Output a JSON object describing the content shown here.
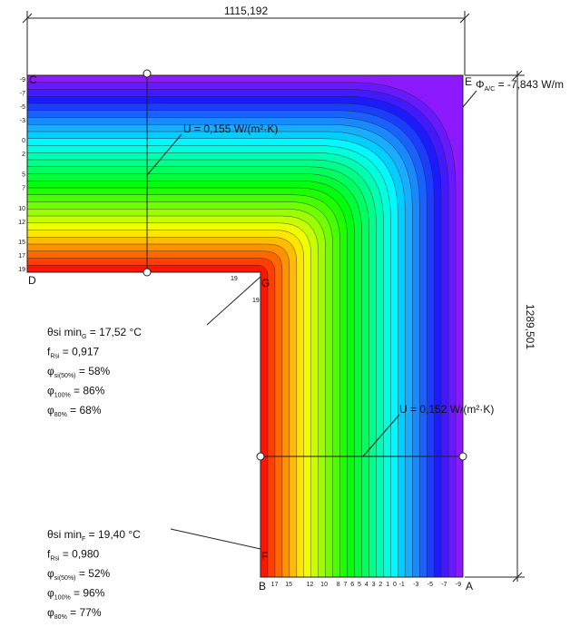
{
  "dimensions": {
    "width": "1115,192",
    "height": "1289,501"
  },
  "points": [
    "C",
    "E",
    "D",
    "G",
    "B",
    "A",
    "F"
  ],
  "heat_flow": {
    "symbol": "Φ",
    "subscript": "A/C",
    "value": " = -7,843 W/m"
  },
  "u_values": [
    "U = 0,155 W/(m²·K)",
    "U = 0,152 W/(m²·K)"
  ],
  "isotherm_labels": {
    "left": [
      -9,
      -7,
      -5,
      -3,
      0,
      2,
      5,
      7,
      10,
      12,
      15,
      17,
      19
    ],
    "bottom": [
      17,
      15,
      12,
      10,
      8,
      7,
      6,
      5,
      4,
      3,
      2,
      1,
      0,
      -1,
      -3,
      -5,
      -7,
      -9
    ],
    "corner": [
      19,
      19
    ]
  },
  "results": [
    {
      "lines": [
        {
          "symbol": "θsi min",
          "subscript": "G",
          "value": " = 17,52 °C"
        },
        {
          "symbol": "f",
          "subscript": "Rsi",
          "value": " = 0,917"
        },
        {
          "symbol": "φ",
          "subscript": "si(50%)",
          "value": " = 58%"
        },
        {
          "symbol": "φ",
          "subscript": "100%",
          "value": " = 86%"
        },
        {
          "symbol": "φ",
          "subscript": "80%",
          "value": " = 68%"
        }
      ]
    },
    {
      "lines": [
        {
          "symbol": "θsi min",
          "subscript": "F",
          "value": " = 19,40 °C"
        },
        {
          "symbol": "f",
          "subscript": "Rsi",
          "value": " = 0,980"
        },
        {
          "symbol": "φ",
          "subscript": "si(50%)",
          "value": " = 52%"
        },
        {
          "symbol": "φ",
          "subscript": "100%",
          "value": " = 96%"
        },
        {
          "symbol": "φ",
          "subscript": "80%",
          "value": " = 77%"
        }
      ]
    }
  ]
}
